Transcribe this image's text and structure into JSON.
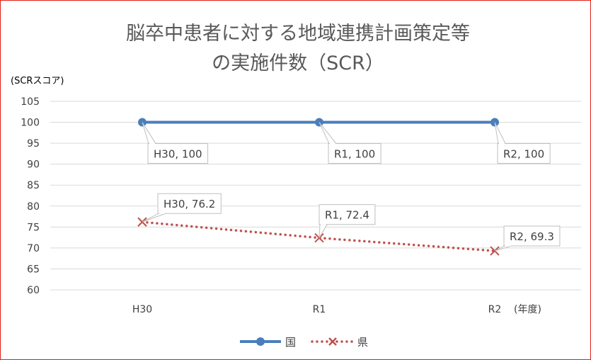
{
  "chart_data": {
    "type": "line",
    "title_lines": [
      "脳卒中患者に対する地域連携計画策定等",
      "の実施件数（SCR）"
    ],
    "ylabel": "(SCRスコア)",
    "xlabel": "(年度)",
    "categories": [
      "H30",
      "R1",
      "R2"
    ],
    "ylim": [
      60,
      105
    ],
    "yticks": [
      60,
      65,
      70,
      75,
      80,
      85,
      90,
      95,
      100,
      105
    ],
    "grid": true,
    "legend_position": "bottom",
    "series": [
      {
        "name": "国",
        "values": [
          100,
          100,
          100
        ],
        "color": "#4a7ebb",
        "style": "solid",
        "marker": "circle",
        "data_labels": [
          "H30, 100",
          "R1, 100",
          "R2, 100"
        ]
      },
      {
        "name": "県",
        "values": [
          76.2,
          72.4,
          69.3
        ],
        "color": "#c0504d",
        "style": "dotted",
        "marker": "x",
        "data_labels": [
          "H30, 76.2",
          "R1, 72.4",
          "R2, 69.3"
        ]
      }
    ]
  },
  "colors": {
    "border": "#e0201b",
    "grid": "#d9d9d9",
    "callout_border": "#bfbfbf"
  }
}
